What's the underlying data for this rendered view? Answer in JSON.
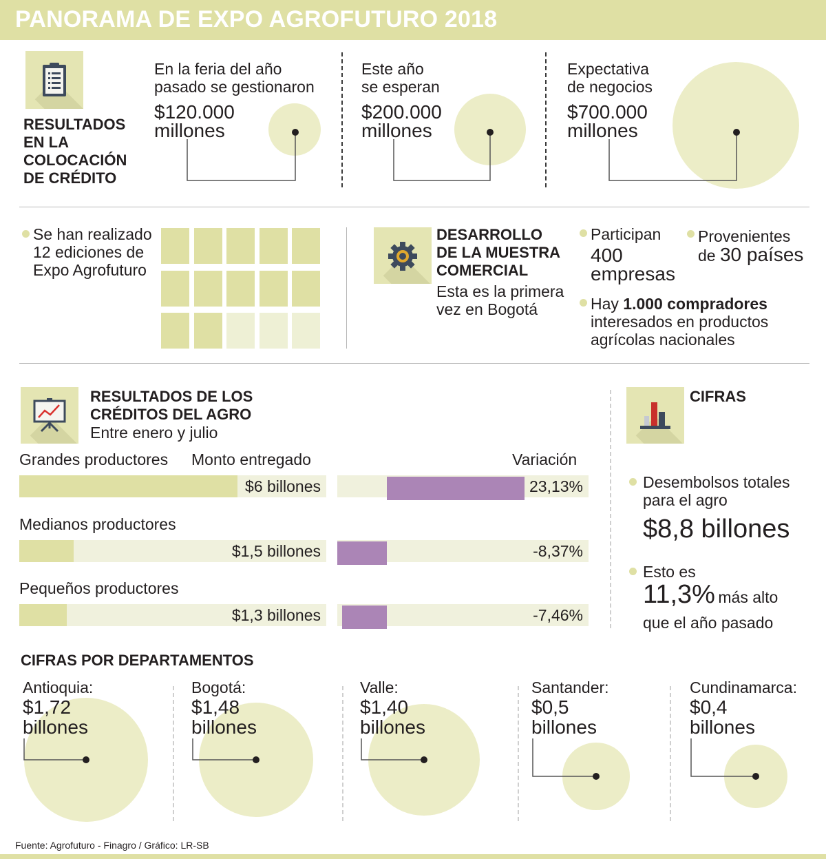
{
  "header": {
    "title": "PANORAMA DE EXPO AGROFUTURO 2018"
  },
  "credit": {
    "heading": [
      "RESULTADOS",
      "EN LA",
      "COLOCACIÓN",
      "DE CRÉDITO"
    ],
    "columns": [
      {
        "lines": [
          "En la feria del año",
          "pasado se gestionaron"
        ],
        "amount": "$120.000",
        "unit": "millones",
        "value_millions": 120000
      },
      {
        "lines": [
          "Este año",
          "se esperan"
        ],
        "amount": "$200.000",
        "unit": "millones",
        "value_millions": 200000
      },
      {
        "lines": [
          "Expectativa",
          "de negocios"
        ],
        "amount": "$700.000",
        "unit": "millones",
        "value_millions": 700000
      }
    ]
  },
  "editions": {
    "lines": [
      "Se han realizado",
      "12 ediciones de",
      "Expo Agrofuturo"
    ],
    "count": 12,
    "total_squares": 15
  },
  "muestra": {
    "heading": [
      "DESARROLLO",
      "DE LA MUESTRA",
      "COMERCIAL"
    ],
    "sub": [
      "Esta es la primera",
      "vez en Bogotá"
    ],
    "participan": {
      "label": "Participan",
      "value": [
        "400",
        "empresas"
      ]
    },
    "provenientes": {
      "label": "Provenientes",
      "prefix": "de ",
      "value": "30 países"
    },
    "compradores": {
      "prefix": "Hay ",
      "value": "1.000 compradores",
      "lines": [
        "interesados en productos",
        "agrícolas nacionales"
      ]
    }
  },
  "creditos_agro": {
    "heading": [
      "RESULTADOS DE LOS",
      "CRÉDITOS DEL AGRO"
    ],
    "sub": "Entre enero y julio",
    "col_monto": "Monto entregado",
    "col_variacion": "Variación"
  },
  "cifras": {
    "heading": "CIFRAS",
    "desembolsos": {
      "lines": [
        "Desembolsos totales",
        "para el agro"
      ],
      "value": "$8,8 billones"
    },
    "esto_es": {
      "label": "Esto es",
      "value": "11,3%",
      "rest": "más alto",
      "line2": "que el año pasado"
    }
  },
  "departamentos": {
    "heading": "CIFRAS POR DEPARTAMENTOS"
  },
  "source": "Fuente: Agrofuturo - Finagro / Gráfico: LR-SB",
  "colors": {
    "accent": "#dfe0a4",
    "circle": "#ecedc7",
    "variation": "#ab85b6",
    "track": "#f0f1dd",
    "text": "#231f20"
  },
  "chart_data": [
    {
      "type": "bar",
      "categories": [
        "Grandes productores",
        "Medianos productores",
        "Pequeños productores"
      ],
      "series": [
        {
          "name": "Monto entregado",
          "values": [
            6,
            1.5,
            1.3
          ],
          "labels": [
            "$6 billones",
            "$1,5 billones",
            "$1,3 billones"
          ]
        },
        {
          "name": "Variación",
          "values": [
            23.13,
            -8.37,
            -7.46
          ],
          "labels": [
            "23,13%",
            "-8,37%",
            "-7,46%"
          ]
        }
      ]
    },
    {
      "type": "scatter",
      "categories": [
        "Antioquia:",
        "Bogotá:",
        "Valle:",
        "Santander:",
        "Cundinamarca:"
      ],
      "values": [
        1.72,
        1.48,
        1.4,
        0.5,
        0.4
      ],
      "labels": [
        "$1,72",
        "$1,48",
        "$1,40",
        "$0,5",
        "$0,4"
      ],
      "unit": "billones"
    }
  ]
}
